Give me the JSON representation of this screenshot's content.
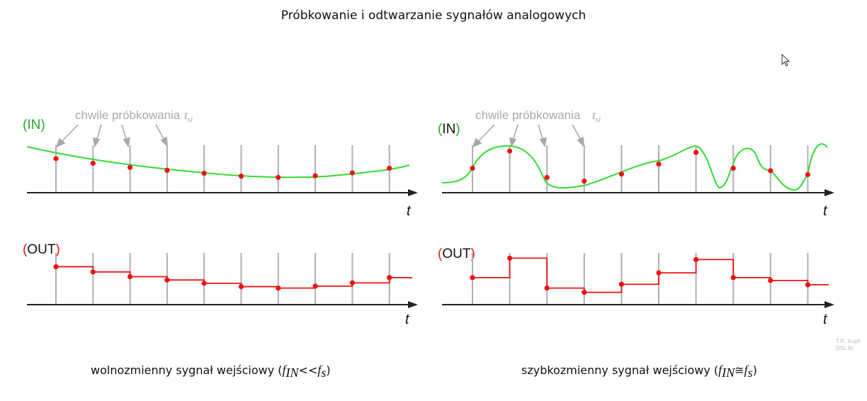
{
  "title": "Próbkowanie i odtwarzanie sygnałów analogowych",
  "annotation": {
    "text": "chwile próbkowania",
    "symbol": "t",
    "subscript": "si"
  },
  "labels": {
    "in_open": "(",
    "in": "IN",
    "in_close": ")",
    "out_open": "(",
    "out": "OUT",
    "out_close": ")",
    "time_axis": "t"
  },
  "colors": {
    "input_signal": "#33dd33",
    "samples": "#ee1111",
    "output_signal": "#ee1111",
    "sample_lines": "#b0b0b0",
    "axis": "#222222",
    "label_green": "#22aa22",
    "label_red": "#ee1111"
  },
  "panels": [
    {
      "caption_text": "wolnozmienny sygnał wejściowy (",
      "caption_f1": "f",
      "caption_sub1": "IN",
      "caption_op": "<<",
      "caption_f2": "f",
      "caption_sub2": "s",
      "caption_close": ")",
      "sample_levels": [
        0.68,
        0.57,
        0.47,
        0.4,
        0.33,
        0.26,
        0.23,
        0.27,
        0.34,
        0.45
      ]
    },
    {
      "caption_text": "szybkozmienny sygnał wejściowy (",
      "caption_f1": "f",
      "caption_sub1": "IN",
      "caption_op": "≅",
      "caption_f2": "f",
      "caption_sub2": "s",
      "caption_close": ")",
      "sample_levels": [
        0.45,
        0.86,
        0.23,
        0.14,
        0.31,
        0.55,
        0.83,
        0.45,
        0.39,
        0.3
      ]
    }
  ],
  "credit": {
    "line1": "T.R. Kuph",
    "line2": "DSL llc"
  }
}
